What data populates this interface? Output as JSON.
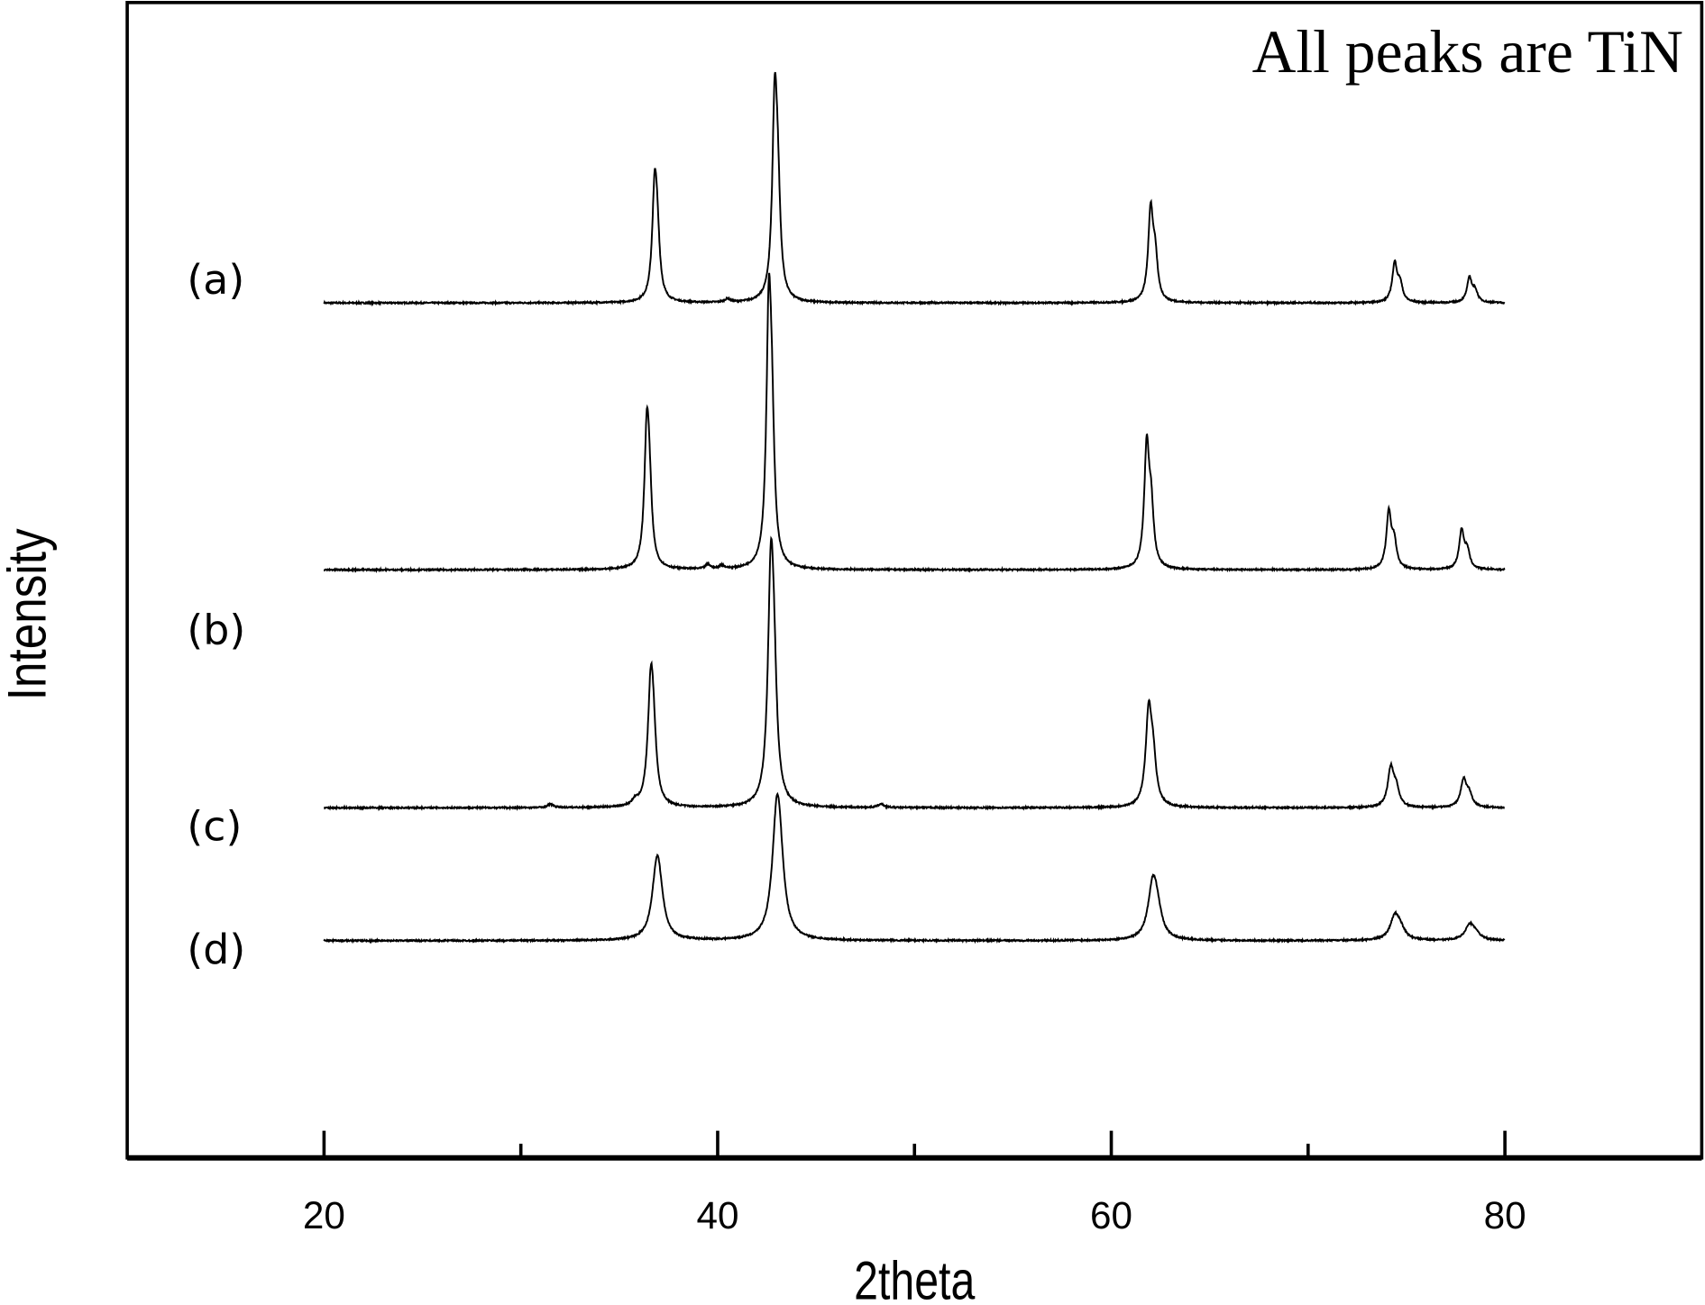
{
  "chart_data": {
    "type": "line",
    "title": "",
    "annotation": "All peaks  are TiN",
    "xlabel": "2theta",
    "ylabel": "Intensity",
    "xlim": [
      10,
      90
    ],
    "xticks": [
      20,
      40,
      60,
      80
    ],
    "xticks_minor": [
      30,
      50,
      70
    ],
    "x_range_data": [
      20,
      80
    ],
    "ylim": [
      0,
      100
    ],
    "y_units": "arbitrary (stacked, no tick labels)",
    "grid": false,
    "legend": "none; series labelled at left",
    "line_color": "#000000",
    "series": [
      {
        "name": "(a)",
        "offset": 74.0,
        "peak_width": 0.15,
        "peaks": [
          [
            36.8,
            9.2
          ],
          [
            40.5,
            0.3
          ],
          [
            42.9,
            16.3
          ],
          [
            62.0,
            7.7
          ],
          [
            74.4,
            3.3
          ],
          [
            78.2,
            2.1
          ]
        ]
      },
      {
        "name": "(b)",
        "offset": 50.9,
        "peak_width": 0.15,
        "peaks": [
          [
            36.4,
            11.1
          ],
          [
            39.5,
            0.4
          ],
          [
            40.2,
            0.3
          ],
          [
            42.6,
            20.9
          ],
          [
            61.8,
            10.3
          ],
          [
            74.1,
            4.8
          ],
          [
            77.8,
            3.3
          ]
        ]
      },
      {
        "name": "(c)",
        "offset": 30.3,
        "peak_width": 0.18,
        "peaks": [
          [
            31.5,
            0.3
          ],
          [
            35.8,
            0.4
          ],
          [
            36.6,
            9.5
          ],
          [
            42.7,
            18.3
          ],
          [
            48.3,
            0.3
          ],
          [
            61.9,
            7.9
          ],
          [
            74.2,
            3.3
          ],
          [
            77.9,
            2.3
          ]
        ]
      },
      {
        "name": "(d)",
        "offset": 18.8,
        "peak_width": 0.28,
        "peaks": [
          [
            36.9,
            5.3
          ],
          [
            43.0,
            9.3
          ],
          [
            62.1,
            4.4
          ],
          [
            74.4,
            1.9
          ],
          [
            78.2,
            1.2
          ]
        ]
      }
    ]
  }
}
